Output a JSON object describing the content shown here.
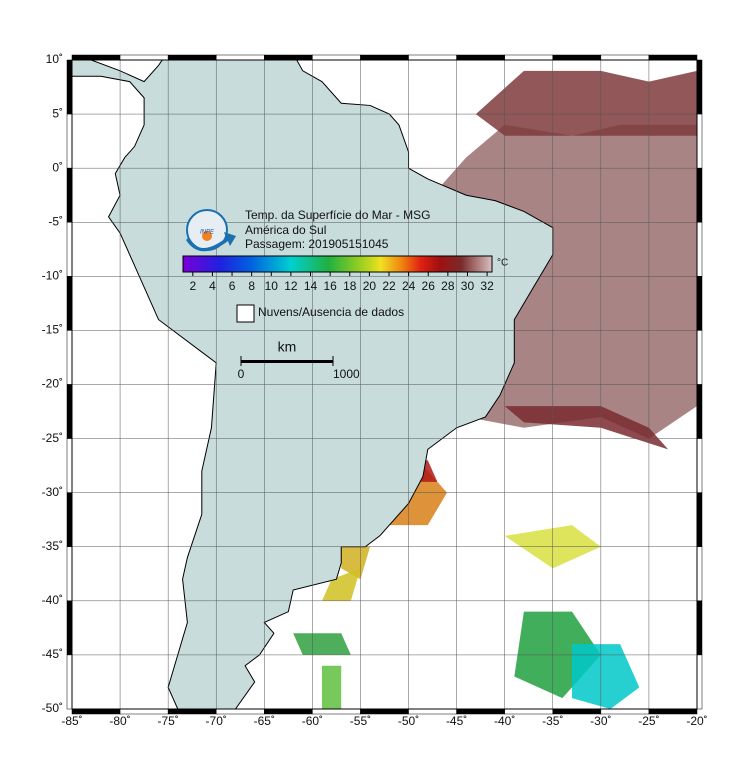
{
  "map": {
    "title": "Temp. da Superfície do Mar - MSG",
    "region": "América do Sul",
    "pass": "Passagem: 201905151045",
    "logo": "INPE",
    "colorbar": {
      "unit": "°C",
      "clim": [
        1,
        32.5
      ],
      "ticks": [
        2,
        4,
        6,
        8,
        10,
        12,
        14,
        16,
        18,
        20,
        22,
        24,
        26,
        28,
        30,
        32
      ]
    },
    "legend": "Nuvens/Ausencia de dados",
    "scale": {
      "unit": "km",
      "ticks": [
        0,
        1000
      ]
    },
    "xlim": [
      -85,
      -20
    ],
    "ylim": [
      -50,
      10
    ],
    "xticks": [
      {
        "value": -85,
        "label": "-85˚"
      },
      {
        "value": -80,
        "label": "-80˚"
      },
      {
        "value": -75,
        "label": "-75˚"
      },
      {
        "value": -70,
        "label": "-70˚"
      },
      {
        "value": -65,
        "label": "-65˚"
      },
      {
        "value": -60,
        "label": "-60˚"
      },
      {
        "value": -55,
        "label": "-55˚"
      },
      {
        "value": -50,
        "label": "-50˚"
      },
      {
        "value": -45,
        "label": "-45˚"
      },
      {
        "value": -40,
        "label": "-40˚"
      },
      {
        "value": -35,
        "label": "-35˚"
      },
      {
        "value": -30,
        "label": "-30˚"
      },
      {
        "value": -25,
        "label": "-25˚"
      },
      {
        "value": -20,
        "label": "-20˚"
      }
    ],
    "yticks": [
      {
        "value": 10,
        "label": "10˚"
      },
      {
        "value": 5,
        "label": "5˚"
      },
      {
        "value": 0,
        "label": "0˚"
      },
      {
        "value": -5,
        "label": "-5˚"
      },
      {
        "value": -10,
        "label": "-10˚"
      },
      {
        "value": -15,
        "label": "-15˚"
      },
      {
        "value": -20,
        "label": "-20˚"
      },
      {
        "value": -25,
        "label": "-25˚"
      },
      {
        "value": -30,
        "label": "-30˚"
      },
      {
        "value": -35,
        "label": "-35˚"
      },
      {
        "value": -40,
        "label": "-40˚"
      },
      {
        "value": -45,
        "label": "-45˚"
      },
      {
        "value": -50,
        "label": "-50˚"
      }
    ]
  }
}
